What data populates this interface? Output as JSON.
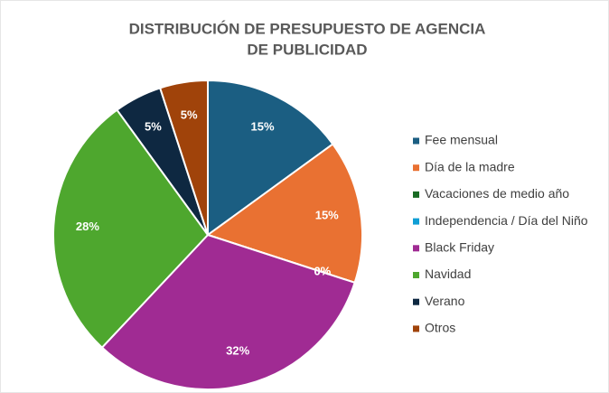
{
  "chart_data": {
    "type": "pie",
    "title": [
      "DISTRIBUCIÓN DE PRESUPUESTO DE AGENCIA",
      "DE PUBLICIDAD"
    ],
    "categories": [
      "Fee mensual",
      "Día de la madre",
      "Vacaciones de medio año",
      "Independencia / Día del Niño",
      "Black Friday",
      "Navidad",
      "Verano",
      "Otros"
    ],
    "values": [
      15,
      15,
      0,
      0,
      32,
      28,
      5,
      5
    ],
    "value_labels": [
      "15%",
      "15%",
      "0%",
      "0%",
      "32%",
      "28%",
      "5%",
      "5%"
    ],
    "colors": [
      "#1b5e82",
      "#e97132",
      "#196b24",
      "#0f9ed5",
      "#a02b93",
      "#4ea72e",
      "#0e2841",
      "#a0430a"
    ],
    "legend": "right"
  }
}
